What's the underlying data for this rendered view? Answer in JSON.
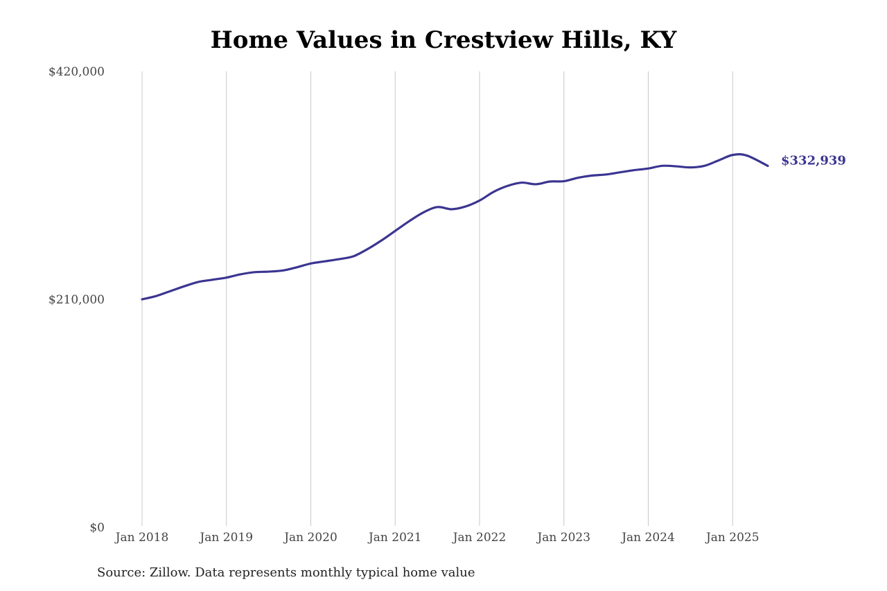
{
  "colors": {
    "line": "#3b3591",
    "grid": "#c8c8c8",
    "text": "#444444"
  },
  "source_note": "Source: Zillow. Data represents monthly typical home value",
  "chart_data": {
    "type": "line",
    "title": "Home Values in Crestview Hills, KY",
    "xlabel": "",
    "ylabel": "",
    "ylim": [
      0,
      420000
    ],
    "yticks": [
      0,
      210000,
      420000
    ],
    "ytick_labels": [
      "$0",
      "$210,000",
      "$420,000"
    ],
    "xticks": [
      "2018-01",
      "2019-01",
      "2020-01",
      "2021-01",
      "2022-01",
      "2023-01",
      "2024-01",
      "2025-01"
    ],
    "xtick_labels": [
      "Jan 2018",
      "Jan 2019",
      "Jan 2020",
      "Jan 2021",
      "Jan 2022",
      "Jan 2023",
      "Jan 2024",
      "Jan 2025"
    ],
    "xlim": [
      "2018-01",
      "2025-06"
    ],
    "grid": "vertical",
    "series": [
      {
        "end_label": "$332,939",
        "points": [
          [
            "2018-01",
            210000
          ],
          [
            "2018-03",
            213000
          ],
          [
            "2018-05",
            217500
          ],
          [
            "2018-07",
            222000
          ],
          [
            "2018-09",
            226000
          ],
          [
            "2018-11",
            228000
          ],
          [
            "2019-01",
            230000
          ],
          [
            "2019-03",
            233000
          ],
          [
            "2019-05",
            235000
          ],
          [
            "2019-07",
            235500
          ],
          [
            "2019-09",
            236500
          ],
          [
            "2019-11",
            239500
          ],
          [
            "2020-01",
            243000
          ],
          [
            "2020-03",
            245000
          ],
          [
            "2020-05",
            247000
          ],
          [
            "2020-07",
            249500
          ],
          [
            "2020-09",
            256000
          ],
          [
            "2020-11",
            264000
          ],
          [
            "2021-01",
            273000
          ],
          [
            "2021-03",
            282000
          ],
          [
            "2021-05",
            290000
          ],
          [
            "2021-07",
            295000
          ],
          [
            "2021-09",
            293000
          ],
          [
            "2021-11",
            295500
          ],
          [
            "2022-01",
            301000
          ],
          [
            "2022-03",
            309000
          ],
          [
            "2022-05",
            314500
          ],
          [
            "2022-07",
            317500
          ],
          [
            "2022-09",
            316000
          ],
          [
            "2022-11",
            318500
          ],
          [
            "2023-01",
            318800
          ],
          [
            "2023-03",
            322000
          ],
          [
            "2023-05",
            324000
          ],
          [
            "2023-07",
            325000
          ],
          [
            "2023-09",
            327000
          ],
          [
            "2023-11",
            329000
          ],
          [
            "2024-01",
            330500
          ],
          [
            "2024-03",
            333000
          ],
          [
            "2024-05",
            332500
          ],
          [
            "2024-07",
            331500
          ],
          [
            "2024-09",
            333000
          ],
          [
            "2024-11",
            338000
          ],
          [
            "2025-01",
            343000
          ],
          [
            "2025-03",
            342500
          ],
          [
            "2025-06",
            332939
          ]
        ]
      }
    ]
  }
}
